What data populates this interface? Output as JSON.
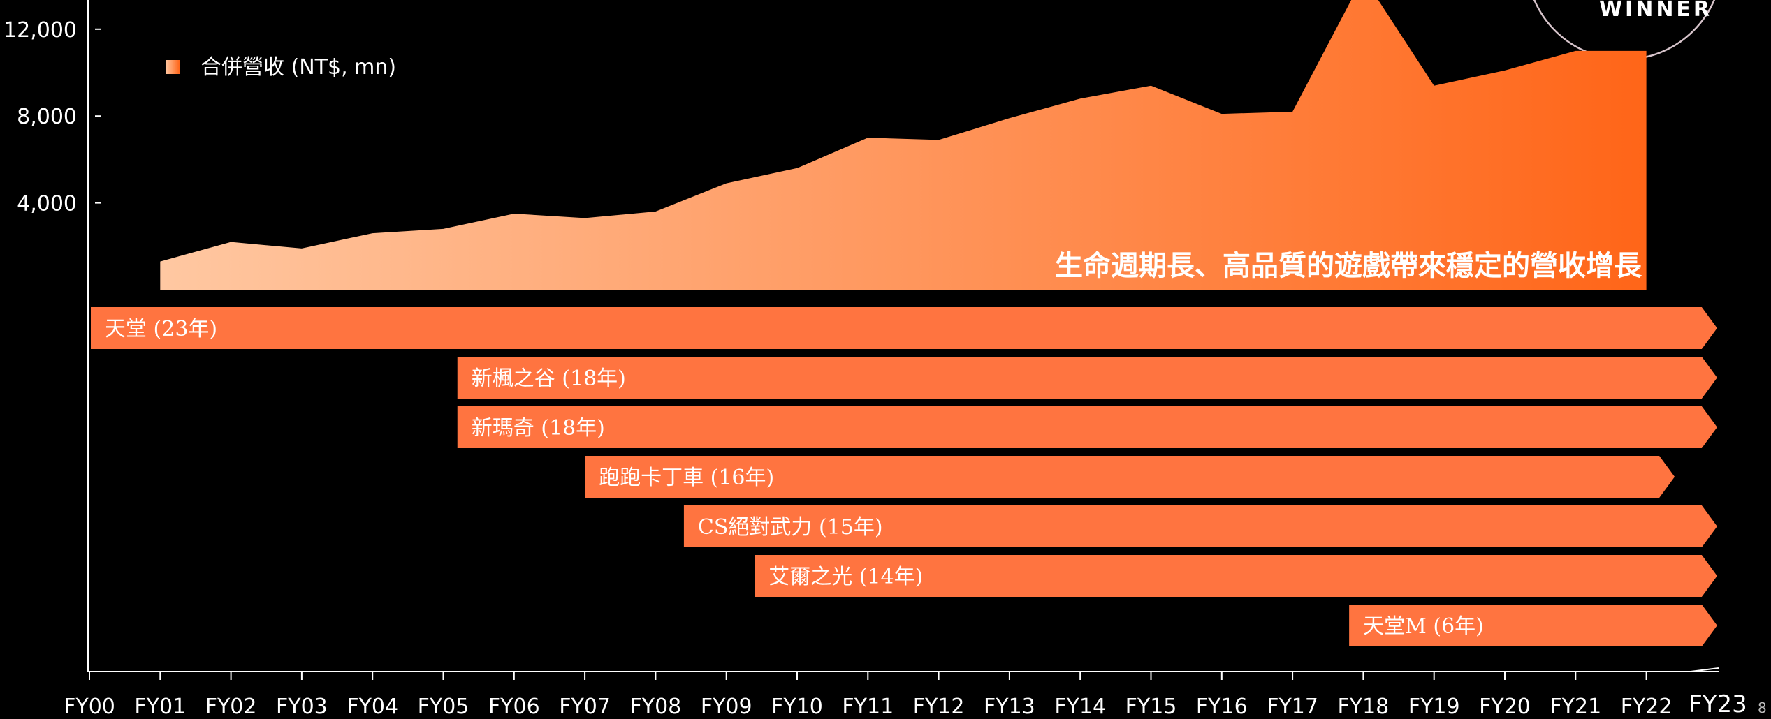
{
  "chart_data": {
    "type": "area",
    "x": [
      "FY00",
      "FY01",
      "FY02",
      "FY03",
      "FY04",
      "FY05",
      "FY06",
      "FY07",
      "FY08",
      "FY09",
      "FY10",
      "FY11",
      "FY12",
      "FY13",
      "FY14",
      "FY15",
      "FY16",
      "FY17",
      "FY18",
      "FY19",
      "FY20",
      "FY21",
      "FY22",
      "FY23"
    ],
    "series": [
      {
        "name": "合併營收 (NT$, mn)",
        "values": [
          null,
          1300,
          2200,
          1900,
          2600,
          2800,
          3500,
          3300,
          3600,
          4900,
          5600,
          7000,
          6900,
          7900,
          8800,
          9400,
          8100,
          8200,
          14400,
          9400,
          10100,
          11000,
          11000,
          null
        ]
      }
    ],
    "yticks": [
      4000,
      8000,
      12000
    ],
    "ytick_labels": [
      "4,000",
      "8,000",
      "12,000"
    ],
    "annotation": "生命週期長、高品質的遊戲帶來穩定的營收增長",
    "legend_position": "top-left",
    "gradient_colors": [
      "#ffc8a2",
      "#ff6518"
    ],
    "timeline_bars": [
      {
        "label": "天堂 (23年)",
        "start": 0.0,
        "end": 23.0
      },
      {
        "label": "新楓之谷 (18年)",
        "start": 5.2,
        "end": 23.0
      },
      {
        "label": "新瑪奇 (18年)",
        "start": 5.2,
        "end": 23.0
      },
      {
        "label": "跑跑卡丁車 (16年)",
        "start": 7.0,
        "end": 22.4
      },
      {
        "label": "CS絕對武力 (15年)",
        "start": 8.4,
        "end": 23.0
      },
      {
        "label": "艾爾之光 (14年)",
        "start": 9.4,
        "end": 23.0
      },
      {
        "label": "天堂M (6年)",
        "start": 17.8,
        "end": 23.0
      }
    ],
    "bar_color": "#ff7440"
  },
  "badge_text": "WINNER",
  "page_number": "8"
}
